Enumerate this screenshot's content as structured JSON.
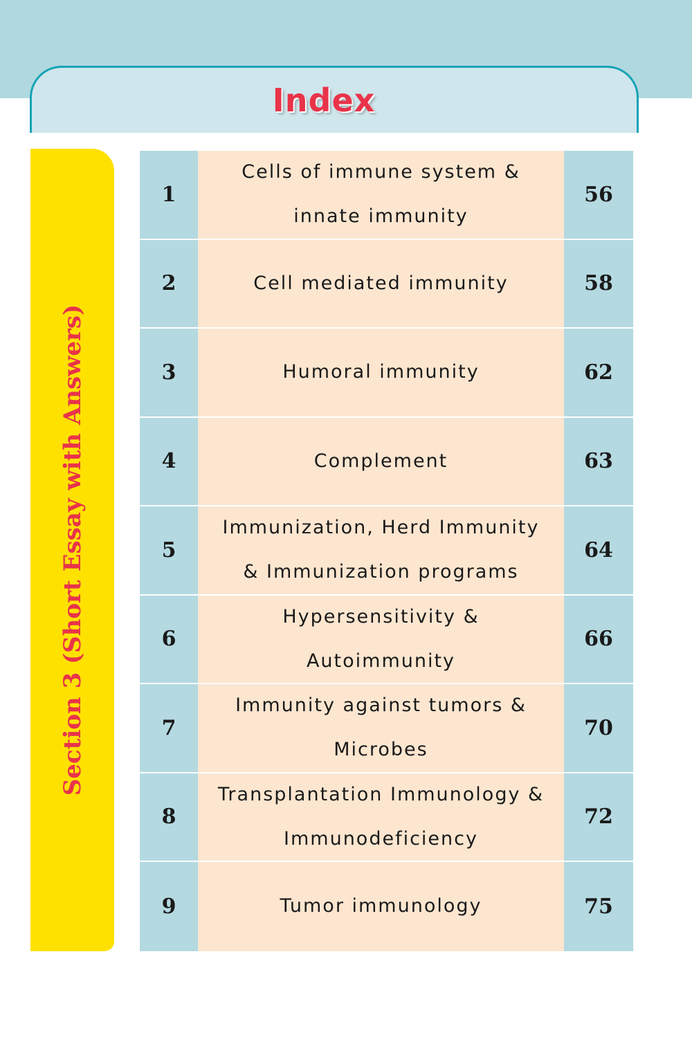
{
  "header": {
    "title": "Index"
  },
  "section": {
    "label": "Section 3 (Short Essay with Answers)"
  },
  "rows": [
    {
      "num": "1",
      "topic": "Cells of immune system & innate immunity",
      "page": "56"
    },
    {
      "num": "2",
      "topic": "Cell mediated immunity",
      "page": "58"
    },
    {
      "num": "3",
      "topic": "Humoral immunity",
      "page": "62"
    },
    {
      "num": "4",
      "topic": "Complement",
      "page": "63"
    },
    {
      "num": "5",
      "topic": "Immunization, Herd Immunity & Immunization programs",
      "page": "64"
    },
    {
      "num": "6",
      "topic": "Hypersensitivity & Autoimmunity",
      "page": "66"
    },
    {
      "num": "7",
      "topic": "Immunity against tumors & Microbes",
      "page": "70"
    },
    {
      "num": "8",
      "topic": "Transplantation Immunology & Immunodeficiency",
      "page": "72"
    },
    {
      "num": "9",
      "topic": "Tumor immunology",
      "page": "75"
    }
  ],
  "colors": {
    "title_red": "#e8334a",
    "section_yellow": "#ffe100",
    "header_border_teal": "#15a3b6",
    "row_blue": "#b4d9e1",
    "row_peach": "#fce6d0"
  }
}
